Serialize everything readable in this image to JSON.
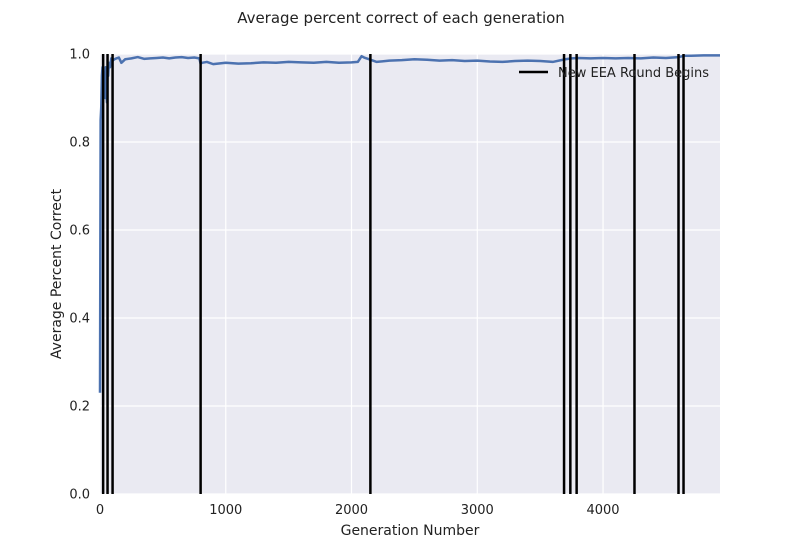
{
  "chart_data": {
    "type": "line",
    "title": "Average percent correct of each generation",
    "xlabel": "Generation Number",
    "ylabel": "Average Percent Correct",
    "xlim": [
      0,
      4930
    ],
    "ylim": [
      0.0,
      1.0
    ],
    "xticks": [
      0,
      1000,
      2000,
      3000,
      4000
    ],
    "yticks": [
      0.0,
      0.2,
      0.4,
      0.6,
      0.8,
      1.0
    ],
    "ytick_labels": [
      "0.0",
      "0.2",
      "0.4",
      "0.6",
      "0.8",
      "1.0"
    ],
    "grid": true,
    "legend_position": "upper right",
    "colors": {
      "series": "#4c72b0",
      "vlines": "#000000",
      "background": "#eaeaf2",
      "grid": "#ffffff"
    },
    "series": [
      {
        "x": [
          0,
          5,
          10,
          15,
          20,
          25,
          30,
          35,
          40,
          45,
          50,
          55,
          60,
          65,
          70,
          80,
          90,
          100,
          115,
          130,
          150,
          170,
          200,
          250,
          300,
          350,
          400,
          450,
          500,
          550,
          600,
          650,
          700,
          750,
          790,
          800,
          810,
          850,
          900,
          1000,
          1100,
          1200,
          1300,
          1400,
          1500,
          1600,
          1700,
          1800,
          1900,
          2000,
          2050,
          2080,
          2100,
          2150,
          2200,
          2300,
          2400,
          2500,
          2600,
          2700,
          2800,
          2900,
          3000,
          3100,
          3200,
          3300,
          3400,
          3500,
          3600,
          3700,
          3750,
          3800,
          3900,
          4000,
          4100,
          4200,
          4300,
          4400,
          4500,
          4600,
          4650,
          4700,
          4800,
          4930
        ],
        "values": [
          0.23,
          0.85,
          0.88,
          0.95,
          0.97,
          0.92,
          0.96,
          0.94,
          0.9,
          0.97,
          0.94,
          0.89,
          0.97,
          0.95,
          0.98,
          0.97,
          0.99,
          0.985,
          0.988,
          0.99,
          0.992,
          0.98,
          0.988,
          0.99,
          0.993,
          0.989,
          0.99,
          0.991,
          0.992,
          0.99,
          0.992,
          0.993,
          0.991,
          0.992,
          0.99,
          0.978,
          0.98,
          0.982,
          0.977,
          0.98,
          0.978,
          0.979,
          0.981,
          0.98,
          0.982,
          0.981,
          0.98,
          0.982,
          0.98,
          0.981,
          0.982,
          0.995,
          0.992,
          0.987,
          0.982,
          0.985,
          0.986,
          0.988,
          0.987,
          0.985,
          0.986,
          0.984,
          0.985,
          0.983,
          0.982,
          0.984,
          0.985,
          0.984,
          0.982,
          0.988,
          0.99,
          0.991,
          0.99,
          0.991,
          0.99,
          0.991,
          0.99,
          0.992,
          0.991,
          0.993,
          0.996,
          0.996,
          0.997,
          0.997
        ]
      }
    ],
    "vlines": {
      "label": "New EEA Round Begins",
      "x": [
        25,
        60,
        100,
        800,
        2150,
        3690,
        3740,
        3790,
        4250,
        4600,
        4640
      ]
    }
  }
}
